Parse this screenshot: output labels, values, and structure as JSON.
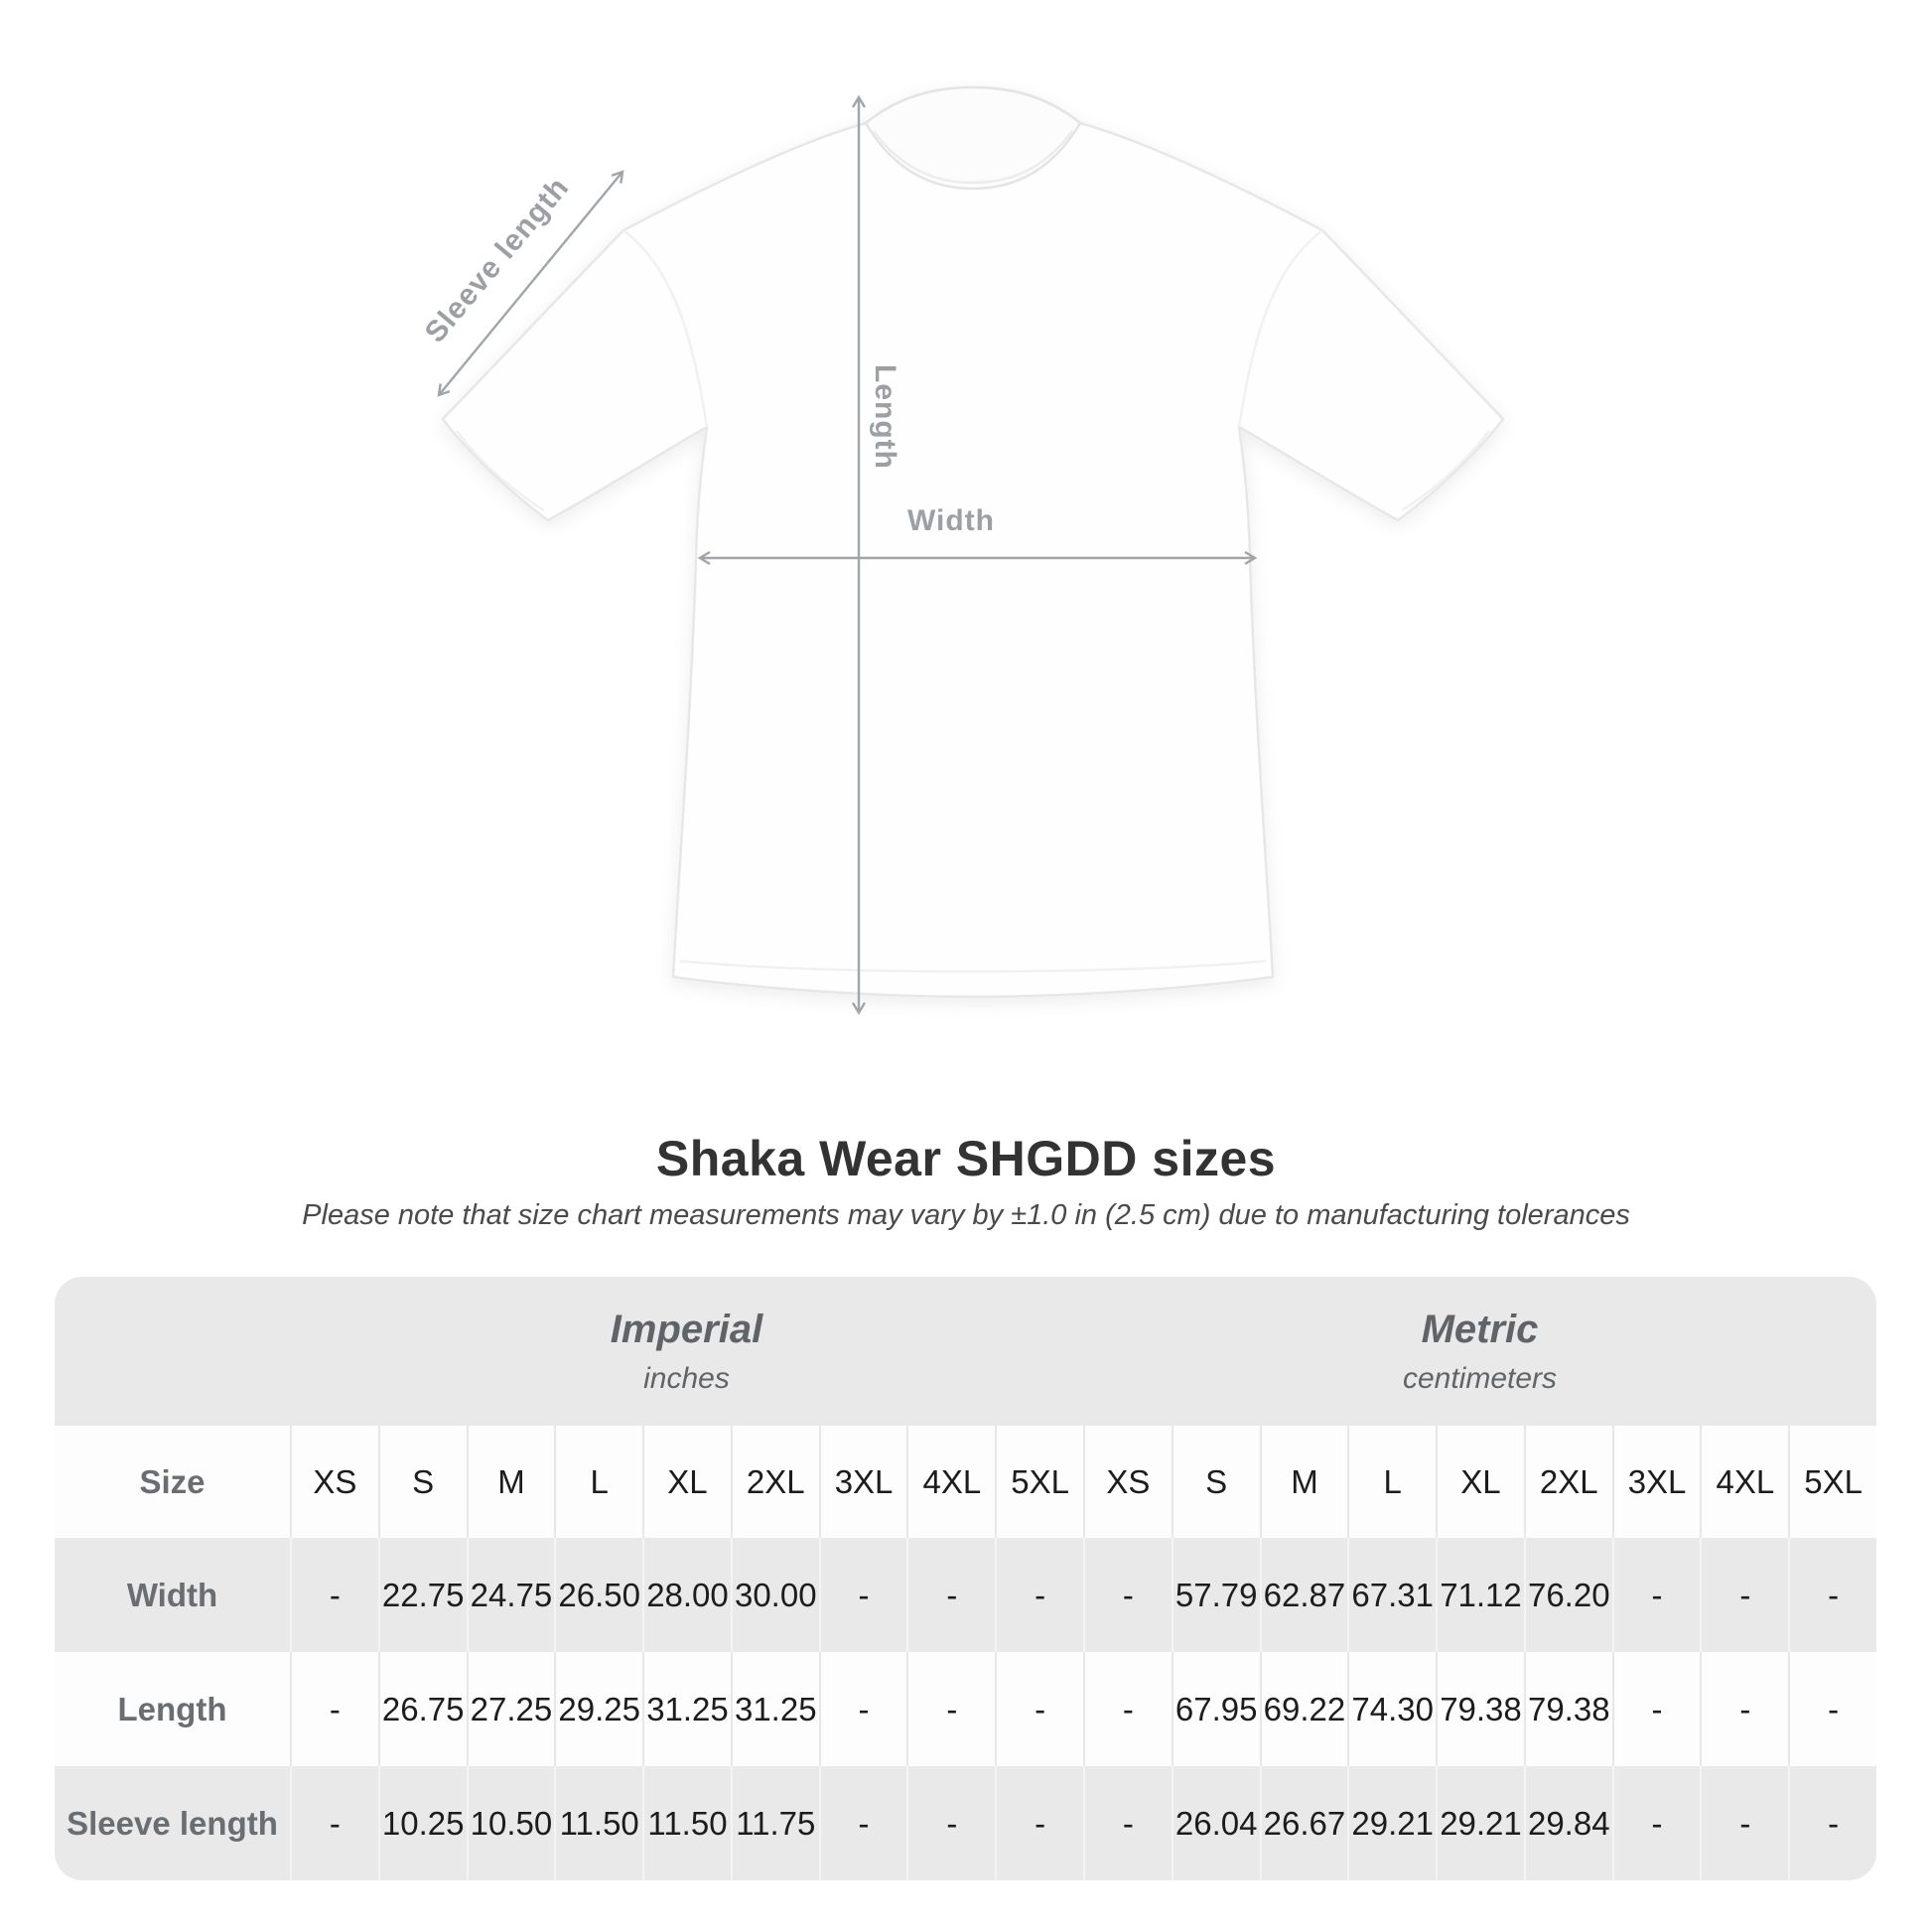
{
  "diagram": {
    "sleeve_label": "Sleeve length",
    "length_label": "Length",
    "width_label": "Width"
  },
  "header": {
    "title": "Shaka Wear SHGDD sizes",
    "subtitle": "Please note that size chart measurements may vary by ±1.0 in (2.5 cm) due to manufacturing tolerances"
  },
  "table": {
    "size_col_header": "Size",
    "unit_groups": [
      {
        "name": "Imperial",
        "unit": "inches"
      },
      {
        "name": "Metric",
        "unit": "centimeters"
      }
    ],
    "sizes": [
      "XS",
      "S",
      "M",
      "L",
      "XL",
      "2XL",
      "3XL",
      "4XL",
      "5XL"
    ],
    "rows": [
      {
        "label": "Width",
        "imperial": [
          "-",
          "22.75",
          "24.75",
          "26.50",
          "28.00",
          "30.00",
          "-",
          "-",
          "-"
        ],
        "metric": [
          "-",
          "57.79",
          "62.87",
          "67.31",
          "71.12",
          "76.20",
          "-",
          "-",
          "-"
        ]
      },
      {
        "label": "Length",
        "imperial": [
          "-",
          "26.75",
          "27.25",
          "29.25",
          "31.25",
          "31.25",
          "-",
          "-",
          "-"
        ],
        "metric": [
          "-",
          "67.95",
          "69.22",
          "74.30",
          "79.38",
          "79.38",
          "-",
          "-",
          "-"
        ]
      },
      {
        "label": "Sleeve length",
        "imperial": [
          "-",
          "10.25",
          "10.50",
          "11.50",
          "11.50",
          "11.75",
          "-",
          "-",
          "-"
        ],
        "metric": [
          "-",
          "26.04",
          "26.67",
          "29.21",
          "29.21",
          "29.84",
          "-",
          "-",
          "-"
        ]
      }
    ]
  },
  "colors": {
    "annotation_gray": "#9ba0a5",
    "title_text": "#333333",
    "subtitle_text": "#4a4a4a",
    "card_background": "#e9e9e9",
    "row_white": "#fdfdfd",
    "header_text": "#696e72",
    "value_text": "#1c1c1c",
    "shirt_outline": "#e7e7e7"
  }
}
